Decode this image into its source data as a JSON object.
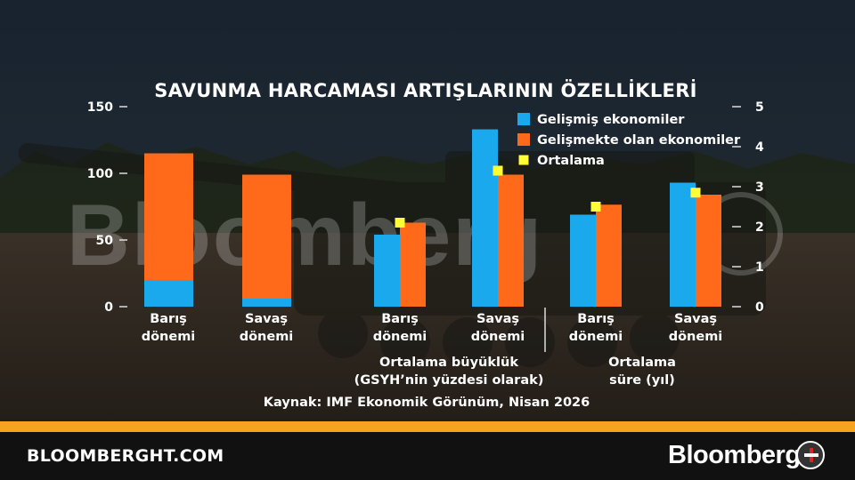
{
  "chart_data": {
    "type": "bar",
    "title": "SAVUNMA HARCAMASI ARTIŞLARININ ÖZELLİKLERİ",
    "source": "Kaynak: IMF Ekonomik Görünüm, Nisan 2026",
    "left_axis": {
      "ticks": [
        "150",
        "100",
        "50",
        "0"
      ],
      "ylim": [
        0,
        150
      ]
    },
    "right_axis": {
      "ticks": [
        "5",
        "4",
        "3",
        "2",
        "1",
        "0"
      ],
      "ylim": [
        0,
        5
      ]
    },
    "legend": {
      "position": "top-right",
      "entries": [
        "Gelişmiş ekonomiler",
        "Gelişmekte olan ekonomiler",
        "Ortalama"
      ]
    },
    "colors": {
      "advanced": "#19a9ec",
      "emerging": "#ff6a1a",
      "average": "#ffff33"
    },
    "panels": [
      {
        "label": "",
        "axis": "left",
        "categories": [
          "Barış\ndönemi",
          "Savaş\ndönemi"
        ],
        "series": [
          {
            "name": "Gelişmiş ekonomiler",
            "values": [
              20,
              6
            ]
          },
          {
            "name": "Gelişmekte olan ekonomiler",
            "values": [
              115,
              99
            ]
          }
        ],
        "stacked": true
      },
      {
        "label": "Ortalama büyüklük\n(GSYH’nin yüzdesi olarak)",
        "axis": "left",
        "categories": [
          "Barış\ndönemi",
          "Savaş\ndönemi"
        ],
        "series": [
          {
            "name": "Gelişmiş ekonomiler",
            "values": [
              54,
              133
            ]
          },
          {
            "name": "Gelişmekte olan ekonomiler",
            "values": [
              63,
              99
            ]
          },
          {
            "name": "Ortalama",
            "values": [
              63,
              102
            ]
          }
        ]
      },
      {
        "label": "Ortalama\nsüre (yıl)",
        "axis": "right",
        "categories": [
          "Barış\ndönemi",
          "Savaş\ndönemi"
        ],
        "series": [
          {
            "name": "Gelişmiş ekonomiler",
            "values": [
              2.3,
              3.1
            ]
          },
          {
            "name": "Gelişmekte olan ekonomiler",
            "values": [
              2.55,
              2.8
            ]
          },
          {
            "name": "Ortalama",
            "values": [
              2.5,
              2.85
            ]
          }
        ]
      }
    ]
  },
  "watermark": "Bloomberg",
  "footer": {
    "site": "BLOOMBERGHT.COM",
    "brand": "Bloomberg"
  }
}
